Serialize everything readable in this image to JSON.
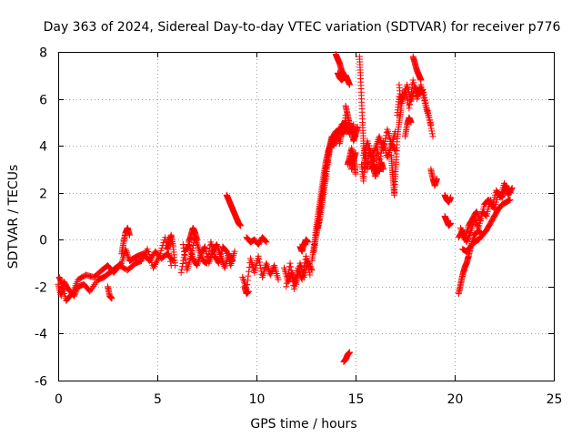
{
  "chart_data": {
    "type": "scatter",
    "title": "Day 363 of 2024, Sidereal Day-to-day VTEC variation (SDTVAR) for receiver p776",
    "xlabel": "GPS time / hours",
    "ylabel": "SDTVAR / TECUs",
    "xlim": [
      0,
      25
    ],
    "ylim": [
      -6,
      8
    ],
    "xticks": [
      "0",
      "5",
      "10",
      "15",
      "20",
      "25"
    ],
    "yticks": [
      "-6",
      "-4",
      "-2",
      "0",
      "2",
      "4",
      "6",
      "8"
    ],
    "grid": true,
    "marker": "plus",
    "series": [
      {
        "name": "SDTVAR",
        "color": "#ff0000",
        "segments": [
          {
            "x": [
              0.0,
              0.15,
              0.3,
              0.5,
              0.8,
              1.0,
              1.3,
              1.6,
              2.0,
              2.3,
              2.6,
              2.9,
              3.2,
              3.4,
              3.6,
              3.8,
              4.0,
              4.3,
              4.6,
              4.9,
              5.2,
              5.5,
              5.8
            ],
            "y": [
              -1.9,
              -2.4,
              -1.8,
              -2.1,
              -2.4,
              -2.0,
              -1.9,
              -2.2,
              -1.7,
              -1.6,
              -1.4,
              -1.2,
              -1.0,
              -0.4,
              -0.9,
              -0.8,
              -0.7,
              -0.6,
              -0.9,
              -0.5,
              -0.8,
              -0.6,
              -0.9
            ]
          },
          {
            "x": [
              0.05,
              0.2,
              0.4,
              0.7,
              1.0,
              1.4,
              1.8,
              2.2,
              2.5,
              2.8,
              3.1,
              3.5,
              3.9,
              4.2,
              4.5,
              4.8,
              5.1,
              5.4,
              5.7
            ],
            "y": [
              -1.6,
              -1.9,
              -2.6,
              -2.3,
              -1.7,
              -1.5,
              -1.6,
              -1.3,
              -1.1,
              -1.4,
              -1.1,
              -1.3,
              -1.0,
              -0.9,
              -0.4,
              -1.2,
              -0.7,
              0.1,
              -1.1
            ]
          },
          {
            "x": [
              2.5,
              2.6,
              2.7
            ],
            "y": [
              -2.0,
              -2.4,
              -2.5
            ]
          },
          {
            "x": [
              3.2,
              3.3,
              3.4,
              3.5,
              3.6
            ],
            "y": [
              -0.6,
              -0.1,
              0.3,
              0.5,
              0.2
            ]
          },
          {
            "x": [
              5.5,
              5.6,
              5.7,
              5.8,
              5.9
            ],
            "y": [
              -0.4,
              -0.1,
              0.2,
              -0.3,
              -1.1
            ]
          },
          {
            "x": [
              6.2,
              6.4,
              6.6,
              6.8,
              7.0,
              7.2,
              7.4,
              7.6,
              7.8,
              8.0,
              8.2,
              8.4,
              8.6,
              8.8
            ],
            "y": [
              -1.4,
              -0.5,
              -0.2,
              -0.8,
              -1.1,
              -0.6,
              -0.3,
              -1.0,
              -0.5,
              -0.2,
              -0.7,
              -1.2,
              -0.6,
              -0.9
            ]
          },
          {
            "x": [
              6.3,
              6.5,
              6.7,
              6.9,
              7.1,
              7.3,
              7.5,
              7.7,
              7.9,
              8.1,
              8.3,
              8.5,
              8.7,
              8.9
            ],
            "y": [
              -0.2,
              -1.3,
              -0.7,
              0.1,
              -0.4,
              -0.9,
              -1.0,
              -0.1,
              -0.7,
              -1.0,
              -0.3,
              -0.5,
              -1.1,
              -0.5
            ]
          },
          {
            "x": [
              6.6,
              6.7,
              6.8,
              6.9,
              7.0
            ],
            "y": [
              -0.1,
              0.2,
              0.5,
              0.3,
              0.0
            ]
          },
          {
            "x": [
              8.5,
              8.6,
              8.7,
              8.8,
              8.9,
              9.0,
              9.1,
              9.2
            ],
            "y": [
              1.9,
              1.7,
              1.5,
              1.3,
              1.1,
              0.9,
              0.7,
              0.6
            ]
          },
          {
            "x": [
              9.3,
              9.5,
              9.7,
              9.9,
              10.1,
              10.3,
              10.5,
              10.7,
              10.9,
              11.1
            ],
            "y": [
              -1.6,
              -2.1,
              -0.8,
              -1.4,
              -0.7,
              -1.6,
              -1.0,
              -1.5,
              -1.1,
              -1.7
            ]
          },
          {
            "x": [
              9.5,
              9.7,
              9.9,
              10.1,
              10.3,
              10.5
            ],
            "y": [
              0.1,
              -0.1,
              0.0,
              -0.2,
              0.1,
              -0.1
            ]
          },
          {
            "x": [
              9.4,
              9.5,
              9.6
            ],
            "y": [
              -2.0,
              -2.3,
              -2.2
            ]
          },
          {
            "x": [
              11.4,
              11.6,
              11.8,
              12.0,
              12.2,
              12.4,
              12.6,
              12.8
            ],
            "y": [
              -1.2,
              -1.8,
              -1.4,
              -1.9,
              -1.0,
              -1.6,
              -0.9,
              -1.3
            ]
          },
          {
            "x": [
              11.5,
              11.7,
              11.9,
              12.1,
              12.3,
              12.5,
              12.7
            ],
            "y": [
              -2.0,
              -1.0,
              -2.1,
              -1.2,
              -1.7,
              -0.7,
              -1.5
            ]
          },
          {
            "x": [
              12.2,
              12.3,
              12.4,
              12.5,
              12.6
            ],
            "y": [
              -0.3,
              -0.5,
              -0.2,
              0.0,
              -0.1
            ]
          },
          {
            "x": [
              12.8,
              12.9,
              13.0,
              13.1,
              13.2,
              13.3,
              13.4,
              13.5,
              13.6,
              13.7,
              13.8,
              14.0,
              14.2,
              14.4,
              14.6,
              14.8,
              15.0
            ],
            "y": [
              -0.9,
              -0.3,
              0.4,
              1.0,
              1.6,
              2.2,
              2.8,
              3.3,
              3.7,
              4.0,
              4.3,
              4.6,
              4.7,
              4.9,
              4.6,
              4.8,
              4.4
            ]
          },
          {
            "x": [
              12.9,
              13.0,
              13.1,
              13.2,
              13.3,
              13.4,
              13.5,
              13.6,
              13.7,
              13.9,
              14.1,
              14.3,
              14.5,
              14.7,
              14.9
            ],
            "y": [
              -0.5,
              0.1,
              0.6,
              1.3,
              1.8,
              2.4,
              3.0,
              3.4,
              3.9,
              4.2,
              4.4,
              4.9,
              5.0,
              4.5,
              4.9
            ]
          },
          {
            "x": [
              13.1,
              13.2,
              13.3,
              13.4,
              13.5,
              13.6,
              13.7,
              13.8
            ],
            "y": [
              0.5,
              0.9,
              1.5,
              2.1,
              2.6,
              3.3,
              3.9,
              4.4
            ]
          },
          {
            "x": [
              13.9,
              14.0,
              14.1,
              14.2,
              14.3,
              14.4,
              14.5
            ],
            "y": [
              4.0,
              4.3,
              4.6,
              4.1,
              4.6,
              4.5,
              5.3
            ]
          },
          {
            "x": [
              14.5,
              14.6,
              14.7,
              14.8,
              14.9,
              15.0,
              15.1
            ],
            "y": [
              5.7,
              5.3,
              4.9,
              4.6,
              4.2,
              4.5,
              4.8
            ]
          },
          {
            "x": [
              14.6,
              14.7,
              14.8,
              14.9,
              15.0
            ],
            "y": [
              3.2,
              3.5,
              3.9,
              3.4,
              3.7
            ]
          },
          {
            "x": [
              14.8,
              14.85,
              14.9,
              14.95,
              15.0
            ],
            "y": [
              3.0,
              3.3,
              3.6,
              3.2,
              2.8
            ]
          },
          {
            "x": [
              14.0,
              14.1,
              14.2,
              14.3,
              14.4,
              14.5,
              14.6,
              14.7
            ],
            "y": [
              7.9,
              7.7,
              7.5,
              7.2,
              7.0,
              7.0,
              6.8,
              6.6
            ]
          },
          {
            "x": [
              14.1,
              14.2,
              14.3,
              14.4,
              14.5,
              14.6
            ],
            "y": [
              7.1,
              6.9,
              6.8,
              6.9,
              6.9,
              6.8
            ]
          },
          {
            "x": [
              14.4,
              14.5,
              14.6,
              14.7
            ],
            "y": [
              -5.2,
              -5.1,
              -4.9,
              -4.8
            ]
          },
          {
            "x": [
              15.2,
              15.25,
              15.3,
              15.35,
              15.4,
              15.45,
              15.5
            ],
            "y": [
              7.8,
              7.0,
              6.0,
              5.0,
              4.2,
              3.5,
              3.0
            ]
          },
          {
            "x": [
              15.3,
              15.4,
              15.5,
              15.6,
              15.7,
              15.8,
              15.9,
              16.0,
              16.1,
              16.2,
              16.4,
              16.6,
              16.8,
              17.0
            ],
            "y": [
              3.2,
              2.5,
              3.8,
              3.0,
              4.0,
              3.2,
              3.6,
              2.7,
              3.9,
              3.3,
              4.2,
              3.5,
              4.0,
              4.6
            ]
          },
          {
            "x": [
              15.4,
              15.6,
              15.8,
              16.0,
              16.2,
              16.4,
              16.6,
              16.8,
              17.0
            ],
            "y": [
              3.6,
              4.2,
              3.5,
              3.9,
              4.4,
              3.8,
              4.7,
              4.1,
              3.8
            ]
          },
          {
            "x": [
              15.8,
              15.9,
              16.0,
              16.1,
              16.2,
              16.3,
              16.4
            ],
            "y": [
              3.0,
              3.2,
              2.7,
              3.1,
              2.9,
              3.3,
              3.0
            ]
          },
          {
            "x": [
              16.8,
              16.85,
              16.9,
              16.95,
              17.0,
              17.05,
              17.1,
              17.2,
              17.3
            ],
            "y": [
              3.6,
              3.0,
              2.5,
              1.9,
              2.7,
              3.4,
              4.3,
              5.0,
              5.6
            ]
          },
          {
            "x": [
              17.1,
              17.2,
              17.4,
              17.6,
              17.8,
              18.0,
              18.2,
              18.4,
              18.6,
              18.8
            ],
            "y": [
              5.3,
              6.1,
              6.0,
              6.6,
              5.9,
              6.5,
              6.2,
              6.4,
              5.6,
              4.9
            ]
          },
          {
            "x": [
              17.2,
              17.3,
              17.5,
              17.7,
              17.9,
              18.1,
              18.3,
              18.5,
              18.7,
              18.9
            ],
            "y": [
              6.6,
              5.7,
              6.4,
              5.6,
              6.8,
              6.0,
              6.6,
              5.8,
              5.2,
              4.4
            ]
          },
          {
            "x": [
              17.5,
              17.6,
              17.7,
              17.8
            ],
            "y": [
              4.4,
              4.9,
              5.2,
              5.0
            ]
          },
          {
            "x": [
              17.9,
              18.0,
              18.1,
              18.2,
              18.3
            ],
            "y": [
              7.8,
              7.5,
              7.2,
              7.0,
              6.8
            ]
          },
          {
            "x": [
              18.8,
              18.9,
              19.0,
              19.1
            ],
            "y": [
              3.0,
              2.6,
              2.3,
              2.6
            ]
          },
          {
            "x": [
              19.5,
              19.6,
              19.7,
              19.8
            ],
            "y": [
              1.9,
              1.7,
              1.6,
              1.8
            ]
          },
          {
            "x": [
              19.5,
              19.6,
              19.7,
              19.8
            ],
            "y": [
              1.0,
              0.8,
              0.6,
              0.7
            ]
          },
          {
            "x": [
              20.2,
              20.3,
              20.4,
              20.5,
              20.6,
              20.7,
              20.8,
              21.0,
              21.2,
              21.4
            ],
            "y": [
              -2.3,
              -1.9,
              -1.5,
              -1.2,
              -1.0,
              -0.7,
              -0.3,
              0.2,
              0.4,
              0.2
            ]
          },
          {
            "x": [
              20.2,
              20.4,
              20.6,
              20.8,
              21.0,
              21.2,
              21.4,
              21.6,
              21.8,
              22.0,
              22.2,
              22.4,
              22.6,
              22.8
            ],
            "y": [
              0.1,
              0.4,
              -0.1,
              0.3,
              0.9,
              0.5,
              1.2,
              1.0,
              1.7,
              1.3,
              2.0,
              1.8,
              2.3,
              2.0
            ]
          },
          {
            "x": [
              20.3,
              20.5,
              20.7,
              20.9,
              21.1,
              21.3,
              21.5,
              21.7,
              21.9,
              22.1,
              22.3,
              22.5,
              22.7,
              22.9
            ],
            "y": [
              0.5,
              0.0,
              0.6,
              0.9,
              1.2,
              0.8,
              1.5,
              1.7,
              1.4,
              2.1,
              1.8,
              2.4,
              1.9,
              2.2
            ]
          },
          {
            "x": [
              20.4,
              20.6,
              20.8,
              21.0,
              21.2,
              21.4,
              21.6,
              21.8,
              22.0,
              22.2,
              22.4,
              22.6,
              22.8
            ],
            "y": [
              -0.4,
              -0.5,
              -0.3,
              -0.1,
              0.0,
              0.2,
              0.4,
              0.7,
              1.0,
              1.3,
              1.5,
              1.6,
              1.7
            ]
          }
        ]
      }
    ]
  }
}
